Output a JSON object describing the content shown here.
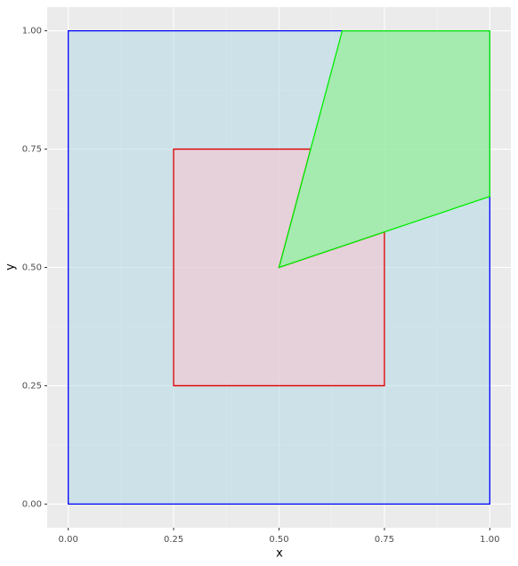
{
  "chart_data": {
    "type": "polygon",
    "x_label": "x",
    "y_label": "y",
    "xlim": [
      -0.05,
      1.05
    ],
    "ylim": [
      -0.05,
      1.05
    ],
    "xticks": [
      {
        "value": 0,
        "label": "0.00"
      },
      {
        "value": 0.25,
        "label": "0.25"
      },
      {
        "value": 0.5,
        "label": "0.50"
      },
      {
        "value": 0.75,
        "label": "0.75"
      },
      {
        "value": 1,
        "label": "1.00"
      }
    ],
    "yticks": [
      {
        "value": 0,
        "label": "0.00"
      },
      {
        "value": 0.25,
        "label": "0.25"
      },
      {
        "value": 0.5,
        "label": "0.50"
      },
      {
        "value": 0.75,
        "label": "0.75"
      },
      {
        "value": 1,
        "label": "1.00"
      }
    ],
    "grid": true,
    "series": [
      {
        "color": "#0000ff",
        "fill": "#add8e6",
        "alpha": 0.5,
        "x": [
          0,
          1,
          1,
          0
        ],
        "y": [
          0,
          0,
          1,
          1
        ]
      },
      {
        "color": "#dd0000",
        "fill": "#ffc0cb",
        "alpha": 0.5,
        "x": [
          0.25,
          0.75,
          0.75,
          0.5,
          0.575,
          0.25
        ],
        "y": [
          0.25,
          0.25,
          0.575,
          0.5,
          0.75,
          0.75
        ]
      },
      {
        "color": "#00ee00",
        "fill": "#90ee90",
        "alpha": 0.65,
        "x": [
          0.5,
          1,
          1,
          0.65
        ],
        "y": [
          0.5,
          0.65,
          1,
          1
        ]
      }
    ]
  }
}
